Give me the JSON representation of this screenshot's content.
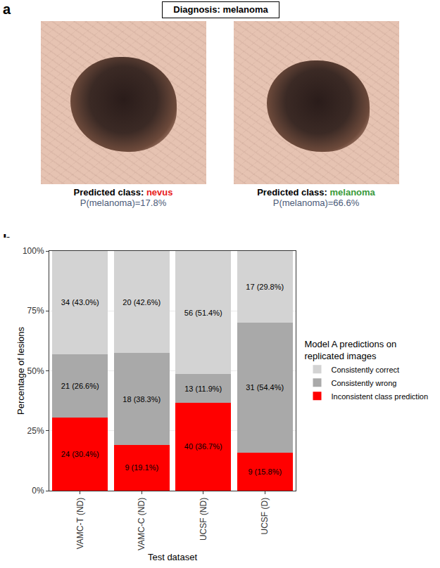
{
  "panel_a": {
    "label": "a",
    "diagnosis": "Diagnosis: melanoma",
    "images": [
      {
        "prefix": "Predicted class:",
        "class": "nevus",
        "class_color": "#e8201c",
        "probability": "P(melanoma)=17.8%"
      },
      {
        "prefix": "Predicted class:",
        "class": "melanoma",
        "class_color": "#3a9a3a",
        "probability": "P(melanoma)=66.6%"
      }
    ]
  },
  "chart_data": {
    "type": "bar",
    "panel_label": "b",
    "stacked": true,
    "data_labels": true,
    "grid": true,
    "legend": "right",
    "legend_title": "Model A predictions on\nreplicated images",
    "x_label": "Test dataset",
    "y_label": "Percentage of lesions",
    "categories": [
      "VAMC-T (ND)",
      "VAMC-C (ND)",
      "UCSF (ND)",
      "UCSF (D)"
    ],
    "series": [
      {
        "name": "Inconsistent class prediction",
        "color": "#ff0000",
        "values": [
          30.4,
          19.1,
          36.7,
          15.8
        ],
        "value_labels": [
          "24 (30.4%)",
          "9 (19.1%)",
          "40 (36.7%)",
          "9 (15.8%)"
        ]
      },
      {
        "name": "Consistently wrong",
        "color": "#a9a9a9",
        "values": [
          26.6,
          38.3,
          11.9,
          54.4
        ],
        "value_labels": [
          "21 (26.6%)",
          "18 (38.3%)",
          "13 (11.9%)",
          "31 (54.4%)"
        ]
      },
      {
        "name": "Consistently correct",
        "color": "#d3d3d3",
        "values": [
          43.0,
          42.6,
          51.4,
          29.8
        ],
        "value_labels": [
          "34 (43.0%)",
          "20 (42.6%)",
          "56 (51.4%)",
          "17 (29.8%)"
        ]
      }
    ],
    "ylim": [
      0,
      100
    ],
    "yticks": [
      {
        "value": 0,
        "label": "0%"
      },
      {
        "value": 25,
        "label": "25%"
      },
      {
        "value": 50,
        "label": "50%"
      },
      {
        "value": 75,
        "label": "75%"
      },
      {
        "value": 100,
        "label": "100%"
      }
    ]
  }
}
